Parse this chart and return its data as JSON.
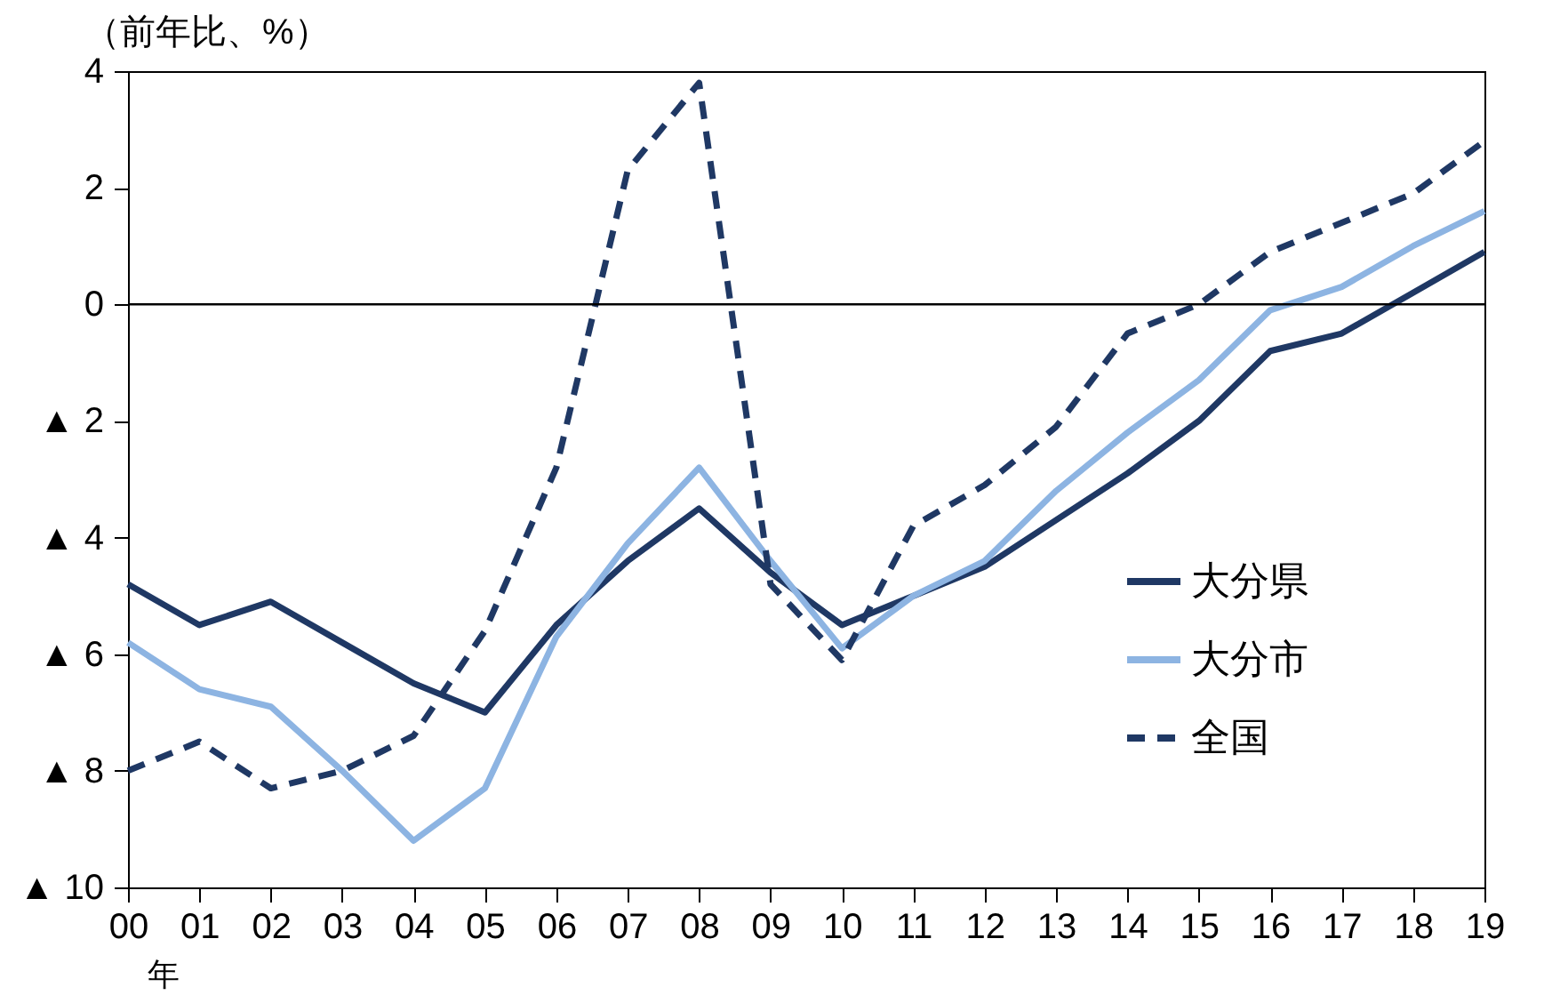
{
  "chart_data": {
    "type": "line",
    "ylabel": "（前年比、%）",
    "annotations": [
      "年"
    ],
    "categories": [
      "00",
      "01",
      "02",
      "03",
      "04",
      "05",
      "06",
      "07",
      "08",
      "09",
      "10",
      "11",
      "12",
      "13",
      "14",
      "15",
      "16",
      "17",
      "18",
      "19"
    ],
    "series": [
      {
        "name": "大分県",
        "color": "#1f3864",
        "line_style": "solid",
        "values": [
          -4.8,
          -5.5,
          -5.1,
          -5.8,
          -6.5,
          -7.0,
          -5.5,
          -4.4,
          -3.5,
          -4.6,
          -5.5,
          -5.0,
          -4.5,
          -3.7,
          -2.9,
          -2.0,
          -0.8,
          -0.5,
          0.2,
          0.9
        ]
      },
      {
        "name": "大分市",
        "color": "#8db4e2",
        "line_style": "solid",
        "values": [
          -5.8,
          -6.6,
          -6.9,
          -8.0,
          -9.2,
          -8.3,
          -5.7,
          -4.1,
          -2.8,
          -4.4,
          -5.9,
          -5.0,
          -4.4,
          -3.2,
          -2.2,
          -1.3,
          -0.1,
          0.3,
          1.0,
          1.6
        ]
      },
      {
        "name": "全国",
        "color": "#1f3864",
        "line_style": "dashed",
        "values": [
          -8.0,
          -7.5,
          -8.3,
          -8.0,
          -7.4,
          -5.6,
          -2.8,
          2.3,
          3.8,
          -4.8,
          -6.1,
          -3.8,
          -3.1,
          -2.1,
          -0.5,
          0.0,
          0.9,
          1.4,
          1.9,
          2.8
        ]
      }
    ],
    "ylim": [
      -10,
      4
    ],
    "yticks": [
      {
        "value": -10,
        "label": "▲ 10"
      },
      {
        "value": -8,
        "label": "▲ 8"
      },
      {
        "value": -6,
        "label": "▲ 6"
      },
      {
        "value": -4,
        "label": "▲ 4"
      },
      {
        "value": -2,
        "label": "▲ 2"
      },
      0,
      2,
      4
    ],
    "ref_lines": [
      {
        "axis": "y",
        "value": 0,
        "label": null,
        "color": "#000000"
      }
    ],
    "grid": false,
    "legend": "bottom right",
    "marker": "none"
  }
}
